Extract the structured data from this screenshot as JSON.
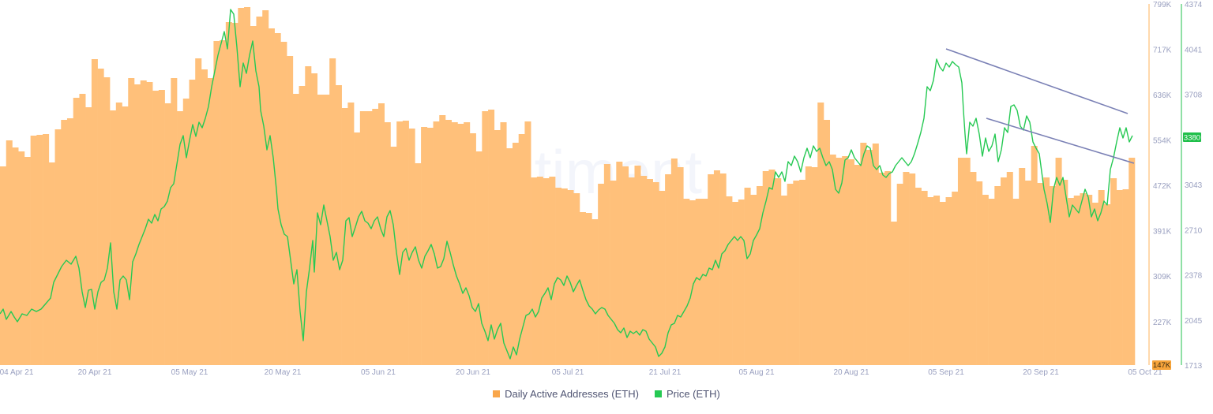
{
  "chart_data": {
    "type": "bar+line",
    "title": "",
    "watermark": "santiment",
    "x_range": [
      "2021-04-03",
      "2021-10-05"
    ],
    "x_ticks": [
      "04 Apr 21",
      "20 Apr 21",
      "05 May 21",
      "20 May 21",
      "05 Jun 21",
      "20 Jun 21",
      "05 Jul 21",
      "21 Jul 21",
      "05 Aug 21",
      "20 Aug 21",
      "05 Sep 21",
      "20 Sep 21",
      "05 Oct 21"
    ],
    "y_left": {
      "label": "Daily Active Addresses (ETH)",
      "ticks": [
        "799K",
        "717K",
        "636K",
        "554K",
        "472K",
        "391K",
        "309K",
        "227K"
      ],
      "min_label": "147K",
      "range": [
        147000,
        799000
      ]
    },
    "y_right": {
      "label": "Price (ETH)",
      "ticks": [
        "4374",
        "4041",
        "3708",
        "3380",
        "3043",
        "2710",
        "2378",
        "2045",
        "1713"
      ],
      "current_value_label": "3380",
      "range": [
        1713,
        4374
      ]
    },
    "series": [
      {
        "name": "Daily Active Addresses (ETH)",
        "type": "bar",
        "color": "#ffc07a",
        "values": [
          505000,
          552000,
          551000,
          527000,
          536000,
          536000,
          510000,
          564000,
          540000,
          537000,
          549000,
          549000,
          557000,
          546000,
          569000,
          580000,
          519000,
          594000,
          589000,
          608000,
          612000,
          652000,
          655000,
          673000,
          661000,
          657000,
          626000,
          639000,
          645000,
          660000,
          646000,
          622000,
          621000,
          637000,
          627000,
          636000,
          640000,
          627000,
          603000,
          664000,
          619000,
          664000,
          652000,
          640000,
          653000,
          674000,
          686000,
          677000,
          664000,
          657000,
          750000,
          783000,
          728000,
          727000,
          767000,
          789000,
          742000,
          735000,
          715000,
          715000,
          690000,
          701000,
          644000,
          650000,
          650000,
          668000,
          628000,
          580000,
          603000,
          613000,
          580000,
          558000,
          545000,
          545000,
          525000,
          530000,
          526000,
          570000,
          576000,
          570000,
          576000,
          562000,
          548000,
          563000,
          538000,
          531000,
          538000,
          531000,
          508000,
          498000,
          487000,
          487000,
          484000,
          484000,
          480000,
          480000,
          477000,
          476000,
          470000,
          466000,
          463000,
          454000,
          469000,
          448000,
          457000,
          474000,
          480000,
          483000,
          489000,
          480000,
          487000,
          516000,
          513000,
          491000,
          465000,
          478000,
          483000,
          467000,
          469000,
          468000,
          459000,
          453000,
          451000,
          449000,
          480000,
          485000,
          486000,
          488000,
          492000,
          498000,
          502000,
          519000,
          488000,
          493000,
          490000,
          473000,
          491000,
          470000,
          466000,
          495000,
          500000,
          496000,
          525000,
          555000,
          593000,
          578000,
          530000,
          538000,
          542000,
          527000,
          527000,
          528000,
          531000,
          510000,
          499000,
          502000,
          512000,
          511000,
          510000,
          460000,
          480000,
          470000,
          475000,
          490000,
          486000,
          470000,
          470000,
          470000,
          494000,
          518000,
          535000,
          530000,
          525000,
          505000,
          496000,
          465000,
          466000,
          458000,
          455000,
          446000,
          461000,
          445000,
          460000,
          499000,
          502000,
          493000,
          470000,
          476000,
          463000,
          486000,
          486000,
          468000,
          514000,
          502000,
          477000,
          469000,
          504000,
          510000,
          510000,
          510000,
          500000,
          496000,
          487000,
          490000,
          465000,
          476000,
          469000,
          456000,
          466000,
          478000,
          470000,
          474000,
          470000,
          490000,
          480000,
          516000,
          530000,
          492000,
          494000,
          485000,
          490000,
          465000,
          474000,
          460000,
          479000,
          454000,
          480000,
          480000,
          488000,
          481000,
          479000,
          475000,
          473000,
          459000,
          457000,
          468000,
          466000,
          466000,
          467000,
          466000,
          453000,
          467000,
          455000,
          458000,
          459000,
          451000,
          467000,
          445000,
          443000,
          460000,
          448000,
          466000,
          465000,
          457000,
          453000,
          468000,
          478000,
          469000,
          467000,
          436000,
          479000,
          479000,
          466000,
          465000,
          465000,
          474000,
          481000,
          475000,
          477000,
          469000,
          494000,
          493000,
          476000,
          508000,
          519000,
          492000,
          486000,
          478000,
          477000,
          474000,
          481000,
          468000,
          464000,
          477000,
          494000,
          478000,
          475000,
          481000,
          477000,
          459000,
          512000,
          513000,
          493000,
          466000,
          467000,
          504000,
          480000,
          482000,
          482000,
          482000,
          481000,
          459000,
          471000,
          471000,
          474000,
          452000,
          492000,
          476000,
          459000,
          455000,
          462000,
          471000,
          467000,
          469000,
          483000,
          469000,
          465000,
          467000,
          491000,
          453000,
          460000,
          457000,
          480000,
          478000,
          463000,
          470000,
          466000,
          470000,
          468000,
          439000
        ]
      },
      {
        "name": "Price (ETH)",
        "type": "line",
        "color": "#26c953"
      }
    ],
    "annotations": [
      {
        "type": "trendline",
        "color": "#7a80b5",
        "from": [
          "2021-09-07",
          4170
        ],
        "to": [
          "2021-10-04",
          3760
        ]
      },
      {
        "type": "trendline",
        "color": "#7a80b5",
        "from": [
          "2021-09-14",
          3660
        ],
        "to": [
          "2021-10-05",
          3165
        ]
      }
    ],
    "legend_position": "bottom-center",
    "grid": false
  },
  "legend": {
    "items": [
      {
        "label": "Daily Active Addresses (ETH)",
        "color": "#f9a64a"
      },
      {
        "label": "Price (ETH)",
        "color": "#26c953"
      }
    ]
  },
  "axes": {
    "left_min_badge": "147K",
    "right_current_badge": "3380"
  }
}
